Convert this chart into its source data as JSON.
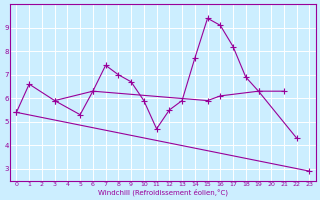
{
  "xlabel": "Windchill (Refroidissement éolien,°C)",
  "x": [
    0,
    1,
    2,
    3,
    4,
    5,
    6,
    7,
    8,
    9,
    10,
    11,
    12,
    13,
    14,
    15,
    16,
    17,
    18,
    19,
    20,
    21,
    22,
    23
  ],
  "line1": [
    5.4,
    6.6,
    null,
    5.9,
    null,
    5.3,
    6.3,
    7.4,
    7.0,
    6.7,
    5.9,
    4.7,
    5.5,
    5.9,
    7.7,
    9.4,
    9.1,
    8.2,
    6.9,
    6.3,
    null,
    6.3,
    null,
    null
  ],
  "line2": [
    null,
    null,
    null,
    5.9,
    null,
    null,
    6.3,
    null,
    null,
    null,
    null,
    null,
    null,
    null,
    null,
    5.9,
    6.1,
    null,
    null,
    6.3,
    null,
    null,
    4.3,
    null
  ],
  "line3": [
    5.4,
    null,
    null,
    null,
    null,
    null,
    null,
    null,
    null,
    null,
    null,
    null,
    null,
    null,
    null,
    null,
    null,
    null,
    null,
    null,
    null,
    null,
    null,
    2.9
  ],
  "line1_data": [
    5.4,
    6.6,
    5.9,
    5.3,
    6.3,
    7.4,
    7.0,
    6.7,
    5.9,
    4.7,
    5.5,
    5.9,
    7.7,
    9.4,
    9.1,
    8.2,
    6.9,
    6.3,
    6.3
  ],
  "line1_x": [
    0,
    1,
    3,
    5,
    6,
    7,
    8,
    9,
    10,
    11,
    12,
    13,
    14,
    15,
    16,
    17,
    18,
    19,
    21
  ],
  "line2_data": [
    5.9,
    6.3,
    5.9,
    6.1,
    6.3,
    4.3
  ],
  "line2_x": [
    3,
    6,
    15,
    16,
    19,
    22
  ],
  "line3_data": [
    5.4,
    2.9
  ],
  "line3_x": [
    0,
    23
  ],
  "color": "#990099",
  "bg_color": "#cceeff",
  "grid_color": "#ffffff",
  "ylim": [
    2.5,
    10.0
  ],
  "xlim": [
    -0.5,
    23.5
  ],
  "yticks": [
    3,
    4,
    5,
    6,
    7,
    8,
    9
  ],
  "xticks": [
    0,
    1,
    2,
    3,
    4,
    5,
    6,
    7,
    8,
    9,
    10,
    11,
    12,
    13,
    14,
    15,
    16,
    17,
    18,
    19,
    20,
    21,
    22,
    23
  ]
}
